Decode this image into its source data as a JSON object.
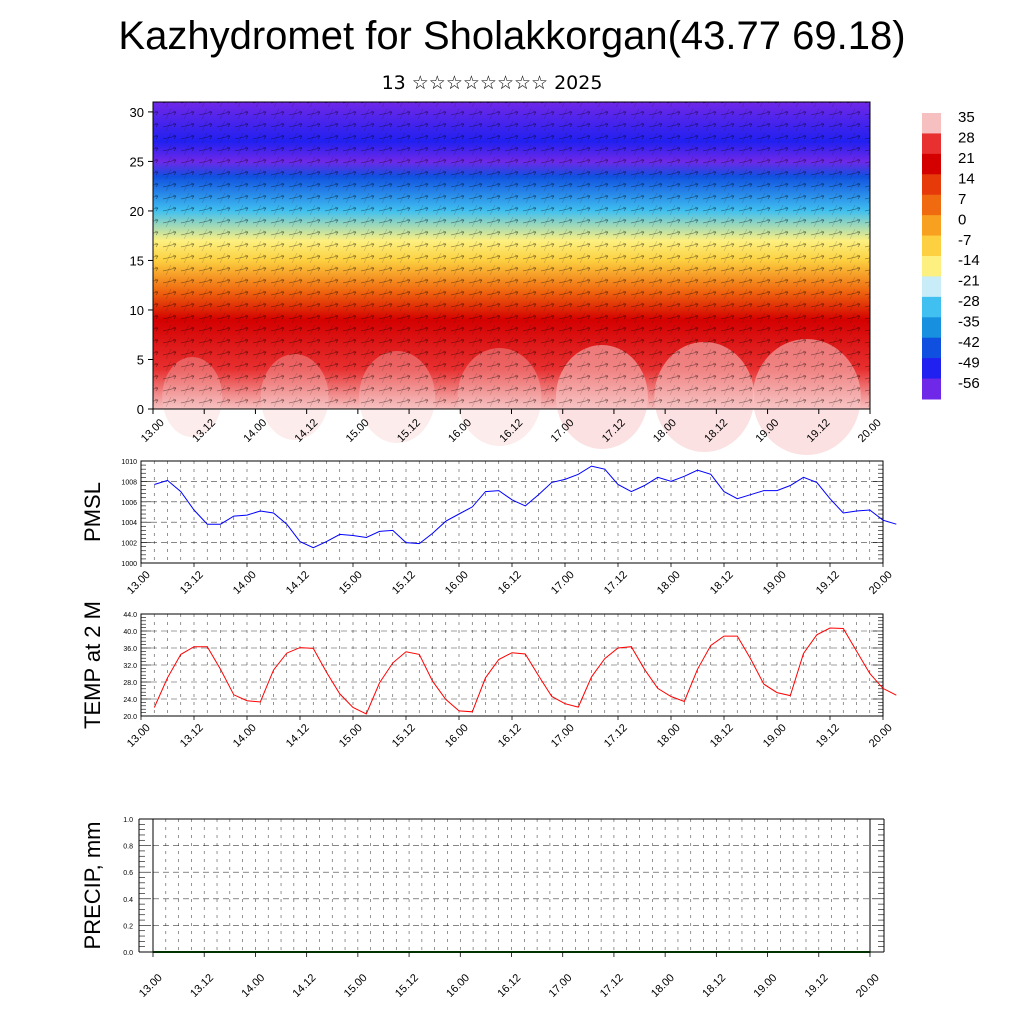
{
  "title": "Kazhydromet for Sholakkorgan(43.77 69.18)",
  "subtitle": "13 ☆☆☆☆☆☆☆☆ 2025",
  "chart_data": [
    {
      "type": "heatmap",
      "name": "cross-section",
      "x_ticks": [
        "13.00",
        "13.12",
        "14.00",
        "14.12",
        "15.00",
        "15.12",
        "16.00",
        "16.12",
        "17.00",
        "17.12",
        "18.00",
        "18.12",
        "19.00",
        "19.12",
        "20.00"
      ],
      "y_ticks": [
        "0",
        "5",
        "10",
        "15",
        "20",
        "25",
        "30"
      ],
      "ylim": [
        0,
        31
      ],
      "colorbar_labels": [
        "35",
        "28",
        "21",
        "14",
        "7",
        "0",
        "-7",
        "-14",
        "-21",
        "-28",
        "-35",
        "-42",
        "-49",
        "-56"
      ],
      "colorbar_colors": [
        "#f7c0c0",
        "#e83030",
        "#d40000",
        "#e63a0a",
        "#f06a10",
        "#f8a020",
        "#fcd040",
        "#fdf080",
        "#c8ecf8",
        "#40c0f0",
        "#1890e0",
        "#1050e0",
        "#2020f0",
        "#7028e8"
      ],
      "level_profile": [
        {
          "height": 0,
          "value": 32
        },
        {
          "height": 4,
          "value": 26
        },
        {
          "height": 9,
          "value": 18
        },
        {
          "height": 12,
          "value": 8
        },
        {
          "height": 15,
          "value": -6
        },
        {
          "height": 17,
          "value": -16
        },
        {
          "height": 20,
          "value": -30
        },
        {
          "height": 23.5,
          "value": -45
        },
        {
          "height": 25,
          "value": -56
        },
        {
          "height": 27,
          "value": -52
        },
        {
          "height": 31,
          "value": -56
        }
      ],
      "grid": false
    },
    {
      "type": "line",
      "name": "pmsl",
      "ylabel": "PMSL",
      "x_ticks": [
        "13.00",
        "13.12",
        "14.00",
        "14.12",
        "15.00",
        "15.12",
        "16.00",
        "16.12",
        "17.00",
        "17.12",
        "18.00",
        "18.12",
        "19.00",
        "19.12",
        "20.00"
      ],
      "y_ticks": [
        "1000",
        "1002",
        "1004",
        "1006",
        "1008",
        "1010"
      ],
      "ylim": [
        1000,
        1010
      ],
      "x_start_hours": 3,
      "x_step_hours": 3,
      "color": "#0000ff",
      "values": [
        1007.7,
        1008.1,
        1007.0,
        1005.2,
        1003.8,
        1003.8,
        1004.6,
        1004.7,
        1005.1,
        1004.9,
        1003.8,
        1002.1,
        1001.5,
        1002.1,
        1002.8,
        1002.7,
        1002.5,
        1003.1,
        1003.2,
        1002.0,
        1001.9,
        1002.9,
        1004.1,
        1004.8,
        1005.5,
        1007.0,
        1007.1,
        1006.2,
        1005.6,
        1006.7,
        1007.9,
        1008.2,
        1008.7,
        1009.5,
        1009.2,
        1007.7,
        1007.0,
        1007.6,
        1008.4,
        1008.0,
        1008.5,
        1009.1,
        1008.7,
        1007.0,
        1006.3,
        1006.7,
        1007.1,
        1007.1,
        1007.6,
        1008.4,
        1007.9,
        1006.3,
        1004.9,
        1005.1,
        1005.2,
        1004.2,
        1003.8
      ]
    },
    {
      "type": "line",
      "name": "temp",
      "ylabel": "TEMP at 2 M",
      "x_ticks": [
        "13.00",
        "13.12",
        "14.00",
        "14.12",
        "15.00",
        "15.12",
        "16.00",
        "16.12",
        "17.00",
        "17.12",
        "18.00",
        "18.12",
        "19.00",
        "19.12",
        "20.00"
      ],
      "y_ticks": [
        "20.0",
        "24.0",
        "28.0",
        "32.0",
        "36.0",
        "40.0",
        "44.0"
      ],
      "ylim": [
        20,
        44
      ],
      "x_start_hours": 3,
      "x_step_hours": 3,
      "color": "#ff0000",
      "values": [
        22.0,
        29.0,
        34.5,
        36.3,
        36.3,
        31.0,
        25.0,
        23.6,
        23.3,
        30.8,
        34.8,
        36.1,
        35.9,
        30.3,
        25.2,
        22.0,
        20.5,
        27.8,
        32.5,
        35.1,
        34.5,
        28.2,
        23.9,
        21.2,
        21.0,
        29.0,
        33.3,
        34.9,
        34.6,
        29.5,
        24.6,
        22.9,
        22.1,
        29.2,
        33.5,
        36.0,
        36.3,
        31.0,
        26.5,
        24.6,
        23.4,
        31.0,
        36.6,
        38.8,
        38.8,
        33.5,
        27.5,
        25.5,
        24.8,
        34.7,
        39.1,
        40.7,
        40.6,
        35.3,
        30.0,
        26.5,
        24.9
      ]
    },
    {
      "type": "line",
      "name": "precip",
      "ylabel": "PRECIP, mm",
      "x_ticks": [
        "13.00",
        "13.12",
        "14.00",
        "14.12",
        "15.00",
        "15.12",
        "16.00",
        "16.12",
        "17.00",
        "17.12",
        "18.00",
        "18.12",
        "19.00",
        "19.12",
        "20.00"
      ],
      "y_ticks": [
        "0.0",
        "0.2",
        "0.4",
        "0.6",
        "0.8",
        "1.0"
      ],
      "ylim": [
        0,
        1
      ],
      "color": "#006400",
      "values": [
        0,
        0,
        0,
        0,
        0,
        0,
        0,
        0,
        0,
        0,
        0,
        0,
        0,
        0,
        0
      ]
    }
  ]
}
